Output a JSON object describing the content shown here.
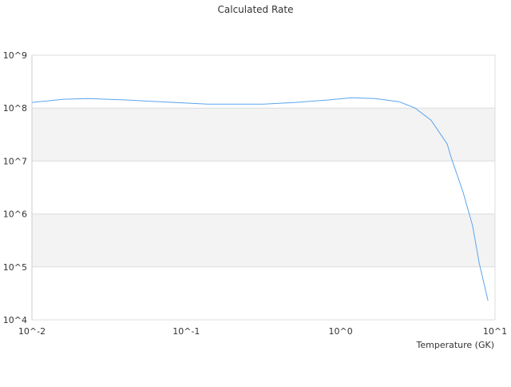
{
  "chart_data": {
    "type": "line",
    "title": "Calculated Rate",
    "xlabel": "Temperature (GK)",
    "ylabel": "",
    "xscale": "log",
    "yscale": "log",
    "xlim": [
      0.01,
      10
    ],
    "ylim": [
      10000,
      1000000000
    ],
    "x_tick_labels": [
      "10^-2",
      "10^-1",
      "10^0",
      "10^1"
    ],
    "y_tick_labels": [
      "10^4",
      "10^5",
      "10^6",
      "10^7",
      "10^8",
      "10^9"
    ],
    "grid": true,
    "alternating_bands": true,
    "line_color": "#5aa5ef",
    "series": [
      {
        "x": [
          0.01,
          0.0161,
          0.023,
          0.0418,
          0.0673,
          0.137,
          0.316,
          0.509,
          0.82,
          1.17,
          1.67,
          2.39,
          3.04,
          3.85,
          4.9,
          5.2,
          6.2,
          7.16,
          7.89,
          9.0
        ],
        "y": [
          128000000.0,
          147000000.0,
          152000000.0,
          142000000.0,
          132000000.0,
          119000000.0,
          119000000.0,
          128000000.0,
          142000000.0,
          157000000.0,
          152000000.0,
          132000000.0,
          100000000.0,
          59000000.0,
          21000000.0,
          11600000.0,
          2600000.0,
          600000.0,
          120000.0,
          23000.0
        ]
      }
    ]
  }
}
